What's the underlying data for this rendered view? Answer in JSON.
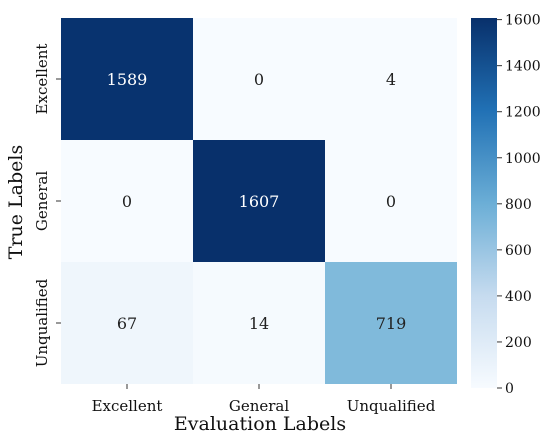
{
  "chart_data": {
    "type": "heatmap",
    "title": "",
    "xlabel": "Evaluation Labels",
    "ylabel": "True Labels",
    "x_categories": [
      "Excellent",
      "General",
      "Unqualified"
    ],
    "y_categories": [
      "Excellent",
      "General",
      "Unqualified"
    ],
    "values": [
      [
        1589,
        0,
        4
      ],
      [
        0,
        1607,
        0
      ],
      [
        67,
        14,
        719
      ]
    ],
    "colorbar": {
      "range": [
        0,
        1607
      ],
      "ticks": [
        0,
        200,
        400,
        600,
        800,
        1000,
        1200,
        1400,
        1600
      ],
      "colormap": "Blues",
      "position": "right"
    }
  }
}
